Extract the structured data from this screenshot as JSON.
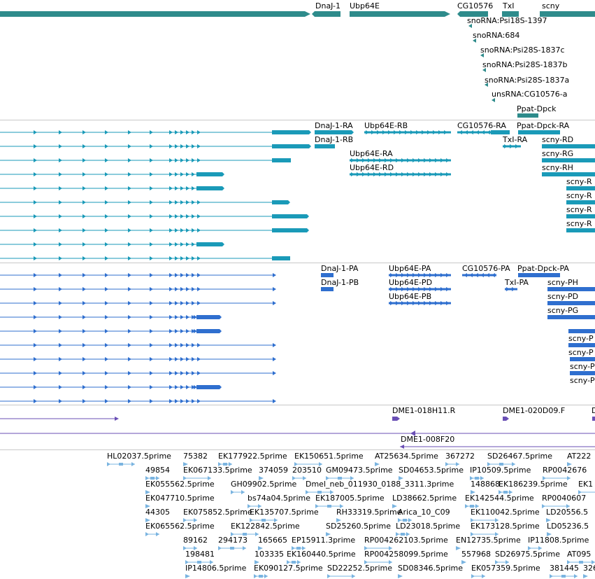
{
  "colors": {
    "gene_track": "#2e8b8b",
    "transcript_track": "#1a9ab8",
    "protein_track": "#2f6fcf",
    "clone_track": "#6a4fb5",
    "est_track": "#7ab4e0",
    "separator": "#c8c8c8"
  },
  "gene_track": {
    "labels": [
      "DnaJ-1",
      "Ubp64E",
      "CG10576",
      "TxI",
      "scny"
    ],
    "ncrna_labels": [
      "snoRNA:Psi18S-1397",
      "snoRNA:684",
      "snoRNA:Psi28S-1837c",
      "snoRNA:Psi28S-1837b",
      "snoRNA:Psi28S-1837a",
      "unsRNA:CG10576-a",
      "Ppat-Dpck"
    ]
  },
  "transcript_track": {
    "labels": [
      "DnaJ-1-RA",
      "Ubp64E-RB",
      "CG10576-RA",
      "Ppat-Dpck-RA",
      "DnaJ-1-RB",
      "TxI-RA",
      "scny-RD",
      "Ubp64E-RA",
      "scny-RG",
      "Ubp64E-RD",
      "scny-RH",
      "scny-R",
      "scny-R",
      "scny-R",
      "scny-R"
    ]
  },
  "protein_track": {
    "labels": [
      "DnaJ-1-PA",
      "Ubp64E-PA",
      "CG10576-PA",
      "Ppat-Dpck-PA",
      "DnaJ-1-PB",
      "Ubp64E-PD",
      "TxI-PA",
      "scny-PH",
      "Ubp64E-PB",
      "scny-PD",
      "scny-PG",
      "scny-P",
      "scny-P",
      "scny-P",
      "scny-P"
    ]
  },
  "clone_track": {
    "labels": [
      "DME1-018H11.R",
      "DME1-020D09.F",
      "D",
      "DME1-008F20"
    ]
  },
  "est_track": {
    "labels": [
      "HL02037.5prime",
      "75382",
      "EK177922.5prime",
      "EK150651.5prime",
      "AT25634.5prime",
      "367272",
      "SD26467.5prime",
      "AT222",
      "49854",
      "EK067133.5prime",
      "374059",
      "203510",
      "GM09473.5prime",
      "SD04653.5prime",
      "IP10509.5prime",
      "RP0042676",
      "EK055562.5prime",
      "GH09902.5prime",
      "Dmel_neb_011930_0188_3311.3prime",
      "148868",
      "EK186239.5prime",
      "EK1",
      "EK047710.5prime",
      "bs74a04.5prime",
      "EK187005.5prime",
      "LD38662.5prime",
      "EK142544.5prime",
      "RP0040607",
      "44305",
      "EK075852.5prime",
      "EK135707.5prime",
      "RH33319.5prime",
      "Arica_10_C09",
      "EK110042.5prime",
      "LD20556.5",
      "EK065562.5prime",
      "EK122842.5prime",
      "SD25260.5prime",
      "LD23018.5prime",
      "EK173128.5prime",
      "LD05236.5",
      "89162",
      "294173",
      "165665",
      "EP15911.3prime",
      "RP004262103.5prime",
      "EN12735.5prime",
      "IP11808.5prime",
      "198481",
      "103335",
      "EK160440.5prime",
      "RP004258099.5prime",
      "557968",
      "SD26975.5prime",
      "AT095",
      "IP14806.5prime",
      "EK090127.5prime",
      "SD22252.5prime",
      "SD08346.5prime",
      "EK057359.5prime",
      "381445",
      "326"
    ]
  }
}
